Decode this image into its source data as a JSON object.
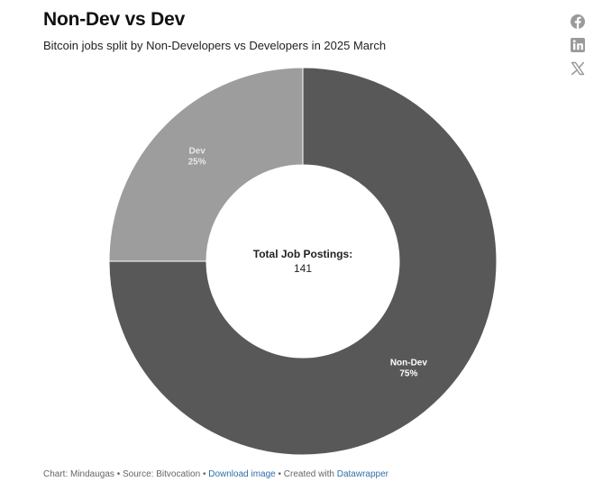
{
  "header": {
    "title": "Non-Dev vs Dev",
    "subtitle": "Bitcoin jobs split by Non-Developers vs Developers in 2025 March"
  },
  "share": [
    {
      "name": "facebook-icon",
      "color": "#9a9a9a"
    },
    {
      "name": "linkedin-icon",
      "color": "#9a9a9a"
    },
    {
      "name": "x-icon",
      "color": "#9a9a9a"
    }
  ],
  "chart_data": {
    "type": "pie",
    "donut": true,
    "categories": [
      "Non-Dev",
      "Dev"
    ],
    "values": [
      75,
      25
    ],
    "labels": [
      "75%",
      "25%"
    ],
    "colors": [
      "#585858",
      "#9d9d9d"
    ],
    "label_colors": [
      "#ffffff",
      "#e6e6e6"
    ],
    "center_label": "Total Job Postings:",
    "center_value": "141"
  },
  "footer": {
    "chart_credit": "Chart: Mindaugas",
    "sep1": " • ",
    "source": "Source: Bitvocation",
    "sep2": " • ",
    "download_label": "Download image",
    "sep3": " • ",
    "created_with": "Created with ",
    "datawrapper_label": "Datawrapper"
  }
}
